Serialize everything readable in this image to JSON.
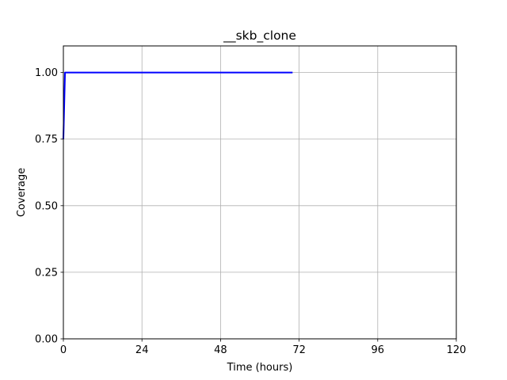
{
  "chart_data": {
    "type": "line",
    "title": "__skb_clone",
    "xlabel": "Time (hours)",
    "ylabel": "Coverage",
    "xlim": [
      0,
      120
    ],
    "ylim": [
      0,
      1.1
    ],
    "xticks": [
      0,
      24,
      48,
      72,
      96,
      120
    ],
    "xtick_labels": [
      "0",
      "24",
      "48",
      "72",
      "96",
      "120"
    ],
    "yticks": [
      0,
      0.25,
      0.5,
      0.75,
      1.0
    ],
    "ytick_labels": [
      "0.00",
      "0.25",
      "0.50",
      "0.75",
      "1.00"
    ],
    "grid": true,
    "series": [
      {
        "color": "#0000ff",
        "x": [
          0,
          0.5,
          70
        ],
        "y": [
          0.75,
          1.0,
          1.0
        ]
      }
    ]
  }
}
